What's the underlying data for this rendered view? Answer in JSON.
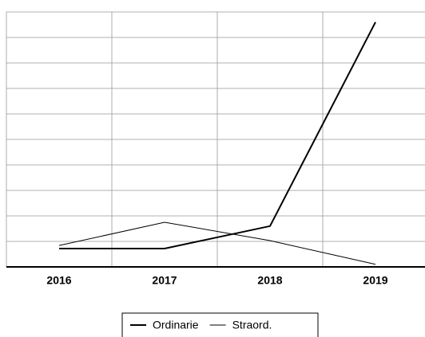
{
  "chart_data": {
    "type": "line",
    "categories": [
      "2016",
      "2017",
      "2018",
      "2019"
    ],
    "series": [
      {
        "name": "Ordinarie",
        "color": "#000000",
        "values": [
          0.72,
          0.72,
          1.6,
          9.6
        ]
      },
      {
        "name": "Straord.",
        "color": "#000000",
        "values": [
          0.84,
          1.75,
          1.03,
          0.1
        ]
      }
    ],
    "ylim": [
      0,
      10
    ],
    "yticks": [
      0,
      1,
      2,
      3,
      4,
      5,
      6,
      7,
      8,
      9,
      10
    ],
    "grid": true,
    "legend": "bottom"
  }
}
